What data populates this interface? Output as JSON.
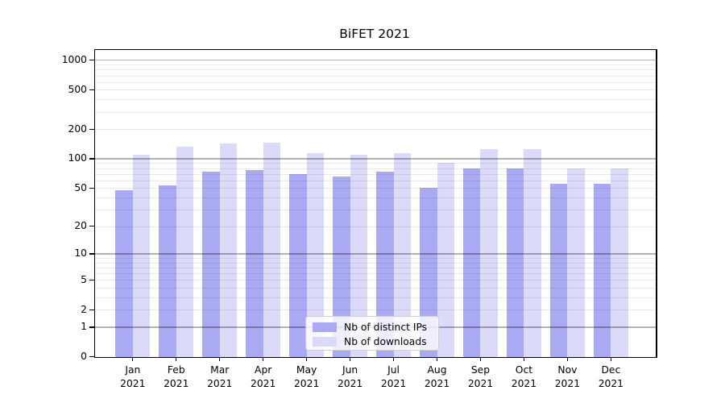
{
  "chart_data": {
    "type": "bar",
    "title": "BiFET 2021",
    "categories": [
      "Jan 2021",
      "Feb 2021",
      "Mar 2021",
      "Apr 2021",
      "May 2021",
      "Jun 2021",
      "Jul 2021",
      "Aug 2021",
      "Sep 2021",
      "Oct 2021",
      "Nov 2021",
      "Dec 2021"
    ],
    "series": [
      {
        "name": "Nb of distinct IPs",
        "color": "#a9a9f4",
        "values": [
          47,
          53,
          74,
          77,
          70,
          65,
          74,
          50,
          79,
          79,
          55,
          55
        ]
      },
      {
        "name": "Nb of downloads",
        "color": "#dbdbf9",
        "values": [
          110,
          132,
          142,
          146,
          114,
          110,
          114,
          90,
          125,
          126,
          80,
          79
        ]
      }
    ],
    "xlabel": "",
    "ylabel": "",
    "yscale": "log1p",
    "y_ticks": [
      1000,
      500,
      200,
      100,
      50,
      20,
      10,
      5,
      2,
      1,
      0
    ],
    "ylim": [
      0,
      1300
    ],
    "grid": "horizontal major+minor",
    "legend_position": "lower center"
  },
  "colors": {
    "major_grid": "rgba(0,0,0,0.30)",
    "minor_grid": "rgba(0,0,0,0.08)",
    "spine": "#000000"
  }
}
